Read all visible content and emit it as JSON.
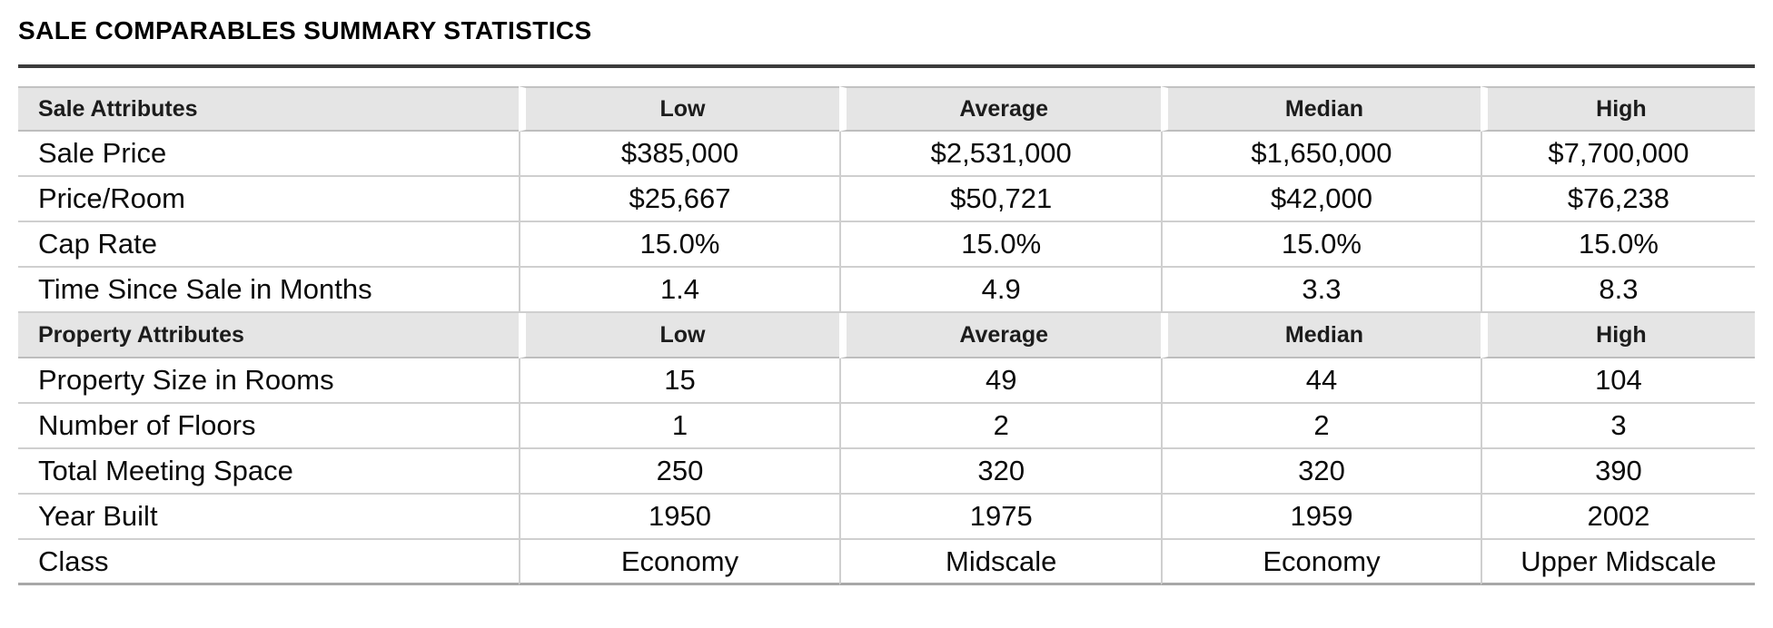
{
  "page": {
    "title": "SALE COMPARABLES SUMMARY STATISTICS"
  },
  "table": {
    "columns": [
      "Low",
      "Average",
      "Median",
      "High"
    ],
    "sections": [
      {
        "header": "Sale Attributes",
        "rows": [
          {
            "label": "Sale Price",
            "values": [
              "$385,000",
              "$2,531,000",
              "$1,650,000",
              "$7,700,000"
            ]
          },
          {
            "label": "Price/Room",
            "values": [
              "$25,667",
              "$50,721",
              "$42,000",
              "$76,238"
            ]
          },
          {
            "label": "Cap Rate",
            "values": [
              "15.0%",
              "15.0%",
              "15.0%",
              "15.0%"
            ]
          },
          {
            "label": "Time Since Sale in Months",
            "values": [
              "1.4",
              "4.9",
              "3.3",
              "8.3"
            ]
          }
        ]
      },
      {
        "header": "Property Attributes",
        "rows": [
          {
            "label": "Property Size in Rooms",
            "values": [
              "15",
              "49",
              "44",
              "104"
            ]
          },
          {
            "label": "Number of Floors",
            "values": [
              "1",
              "2",
              "2",
              "3"
            ]
          },
          {
            "label": "Total Meeting Space",
            "values": [
              "250",
              "320",
              "320",
              "390"
            ]
          },
          {
            "label": "Year Built",
            "values": [
              "1950",
              "1975",
              "1959",
              "2002"
            ]
          },
          {
            "label": "Class",
            "values": [
              "Economy",
              "Midscale",
              "Economy",
              "Upper Midscale"
            ]
          }
        ]
      }
    ]
  },
  "colors": {
    "header_bg": "#e5e5e5",
    "header_border": "#c2c2c2",
    "row_line": "#cfcfcf",
    "bottom_line": "#a8a8a8",
    "title_rule": "#3c3c3c"
  }
}
